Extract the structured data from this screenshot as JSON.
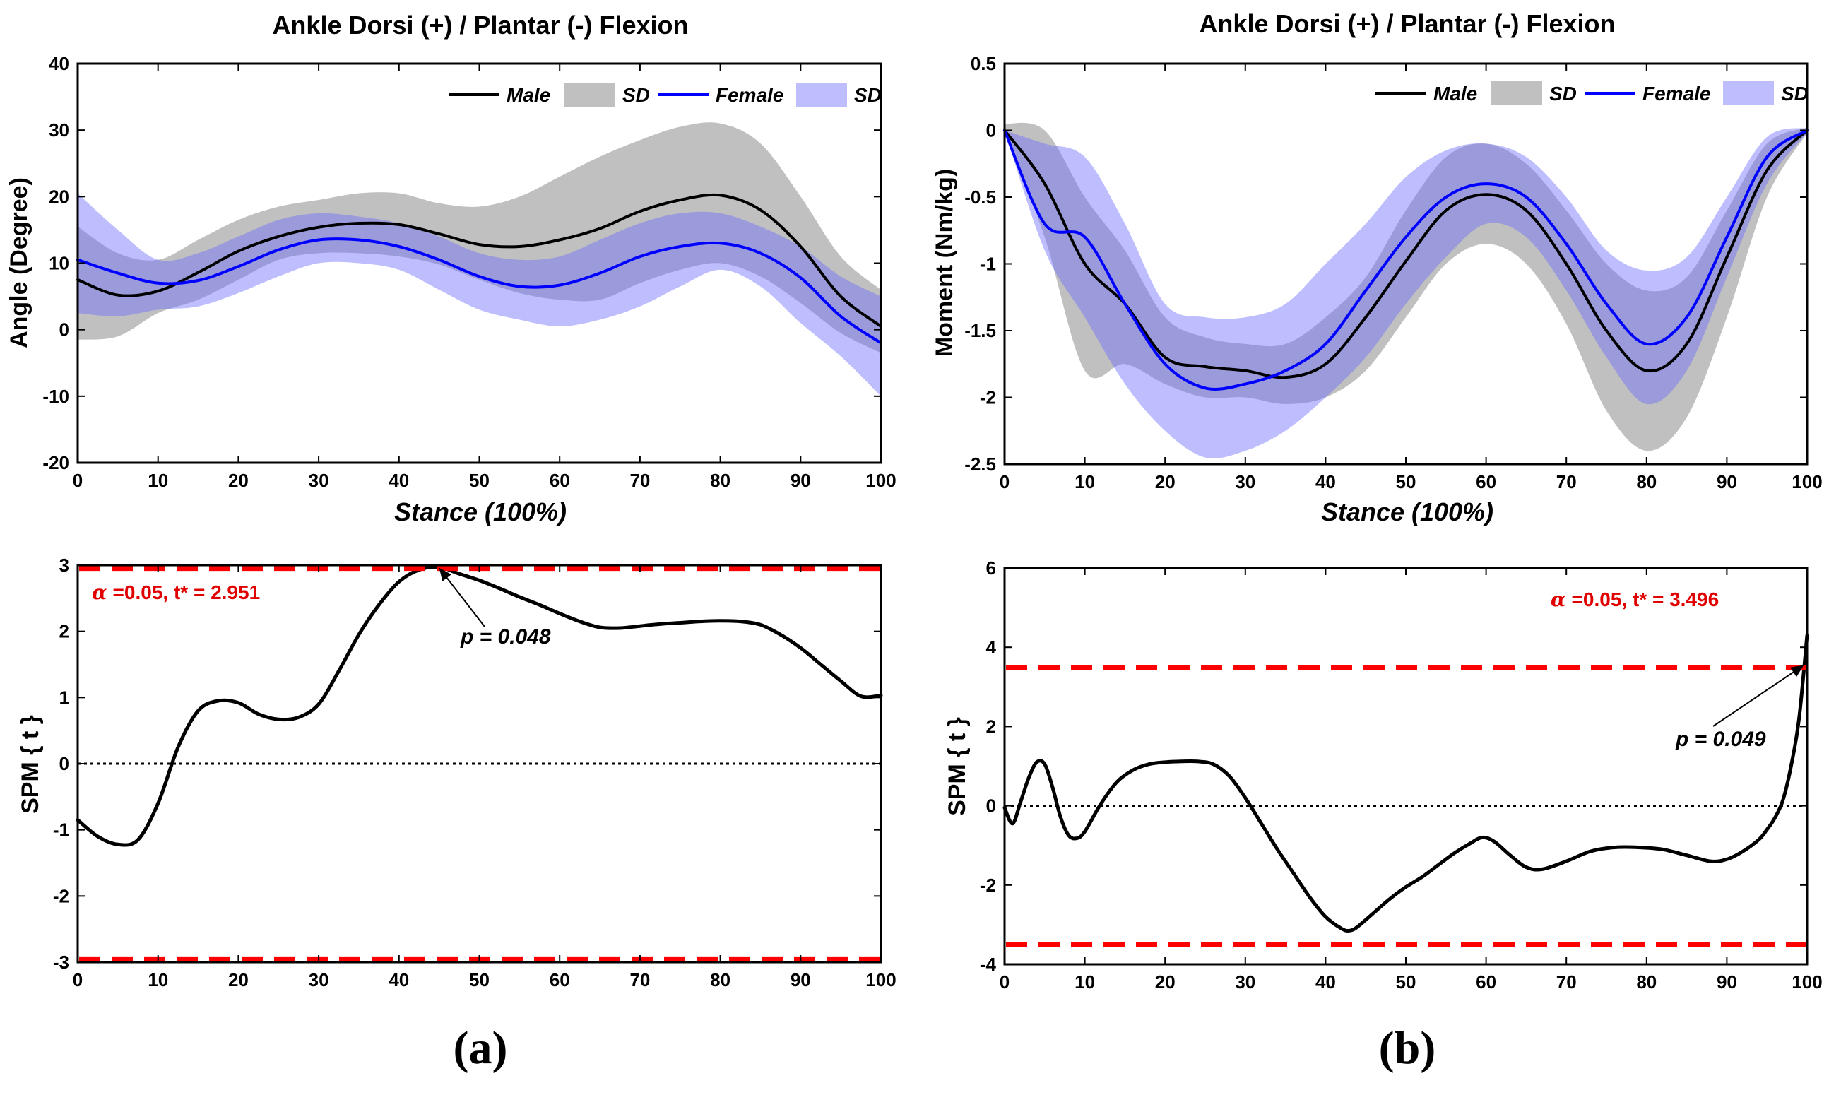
{
  "chart_data": [
    {
      "id": "a-top",
      "type": "line",
      "title": "Ankle Dorsi (+) / Plantar (-) Flexion",
      "xlabel": "Stance (100%)",
      "ylabel": "Angle (Degree)",
      "xlim": [
        0,
        100
      ],
      "ylim": [
        -20,
        40
      ],
      "xticks": [
        0,
        10,
        20,
        30,
        40,
        50,
        60,
        70,
        80,
        90,
        100
      ],
      "yticks": [
        -20,
        -10,
        0,
        10,
        20,
        30,
        40
      ],
      "legend": [
        "Male",
        "SD",
        "Female",
        "SD"
      ],
      "x": [
        0,
        5,
        10,
        15,
        20,
        25,
        30,
        35,
        40,
        45,
        50,
        55,
        60,
        65,
        70,
        75,
        80,
        85,
        90,
        95,
        100
      ],
      "series": [
        {
          "name": "Male",
          "color": "#000000",
          "values": [
            7.5,
            5.2,
            5.8,
            8.6,
            11.8,
            14.0,
            15.4,
            16.0,
            15.8,
            14.4,
            12.8,
            12.5,
            13.5,
            15.2,
            17.8,
            19.5,
            20.2,
            18.0,
            12.5,
            5.0,
            0.5
          ],
          "sd_upper": [
            15.5,
            11.5,
            10.5,
            13.5,
            16.5,
            18.5,
            19.5,
            20.5,
            20.5,
            19.0,
            18.5,
            20.0,
            23.0,
            26.0,
            28.5,
            30.5,
            31.0,
            28.0,
            20.0,
            11.0,
            6.0
          ],
          "sd_lower": [
            -1.5,
            -1.0,
            2.5,
            4.5,
            7.5,
            10.5,
            11.5,
            11.5,
            11.0,
            9.8,
            7.5,
            5.5,
            4.5,
            4.5,
            7.0,
            9.0,
            10.0,
            8.0,
            4.0,
            -0.5,
            -3.5
          ]
        },
        {
          "name": "Female",
          "color": "#0000ff",
          "values": [
            10.5,
            8.5,
            7.0,
            7.4,
            9.5,
            12.0,
            13.5,
            13.5,
            12.5,
            10.5,
            8.0,
            6.5,
            6.7,
            8.5,
            11.0,
            12.5,
            13.0,
            11.5,
            7.8,
            2.0,
            -2.0
          ],
          "sd_upper": [
            20.5,
            15.0,
            10.5,
            11.5,
            14.0,
            16.5,
            17.5,
            17.0,
            16.0,
            14.0,
            11.5,
            10.5,
            11.0,
            13.5,
            16.0,
            17.5,
            17.5,
            15.5,
            12.5,
            8.0,
            5.0
          ],
          "sd_lower": [
            2.5,
            2.0,
            3.0,
            3.5,
            5.5,
            8.0,
            10.0,
            10.0,
            9.0,
            6.0,
            3.0,
            1.5,
            0.5,
            1.5,
            3.5,
            6.5,
            9.0,
            6.5,
            1.0,
            -4.0,
            -10.0
          ]
        }
      ]
    },
    {
      "id": "b-top",
      "type": "line",
      "title": "Ankle Dorsi (+) / Plantar (-) Flexion",
      "xlabel": "Stance (100%)",
      "ylabel": "Moment (Nm/kg)",
      "xlim": [
        0,
        100
      ],
      "ylim": [
        -2.5,
        0.5
      ],
      "xticks": [
        0,
        10,
        20,
        30,
        40,
        50,
        60,
        70,
        80,
        90,
        100
      ],
      "yticks": [
        -2.5,
        -2,
        -1.5,
        -1,
        -0.5,
        0,
        0.5
      ],
      "ytick_labels": [
        "-2.5",
        "-2",
        "-1.5",
        "-1",
        "-0.5",
        "0",
        "0.5"
      ],
      "legend": [
        "Male",
        "SD",
        "Female",
        "SD"
      ],
      "x": [
        0,
        5,
        10,
        15,
        20,
        25,
        30,
        35,
        40,
        45,
        50,
        55,
        60,
        65,
        70,
        75,
        80,
        85,
        90,
        95,
        100
      ],
      "series": [
        {
          "name": "Male",
          "color": "#000000",
          "values": [
            0.0,
            -0.4,
            -1.0,
            -1.3,
            -1.7,
            -1.77,
            -1.8,
            -1.85,
            -1.75,
            -1.4,
            -0.98,
            -0.6,
            -0.48,
            -0.6,
            -1.0,
            -1.5,
            -1.8,
            -1.6,
            -0.95,
            -0.3,
            0.0
          ],
          "sd_upper": [
            0.05,
            0.0,
            -0.5,
            -0.9,
            -1.4,
            -1.55,
            -1.6,
            -1.6,
            -1.4,
            -1.1,
            -0.6,
            -0.2,
            -0.1,
            -0.25,
            -0.6,
            -1.0,
            -1.2,
            -1.1,
            -0.6,
            -0.1,
            0.02
          ],
          "sd_lower": [
            0.0,
            -0.8,
            -1.8,
            -1.75,
            -1.9,
            -2.0,
            -2.0,
            -2.05,
            -2.0,
            -1.8,
            -1.4,
            -1.0,
            -0.85,
            -1.0,
            -1.45,
            -2.1,
            -2.4,
            -2.15,
            -1.4,
            -0.5,
            -0.02
          ]
        },
        {
          "name": "Female",
          "color": "#0000ff",
          "values": [
            0.0,
            -0.7,
            -0.8,
            -1.3,
            -1.75,
            -1.93,
            -1.9,
            -1.8,
            -1.6,
            -1.2,
            -0.8,
            -0.5,
            -0.4,
            -0.5,
            -0.85,
            -1.3,
            -1.6,
            -1.4,
            -0.8,
            -0.2,
            0.0
          ],
          "sd_upper": [
            0.0,
            -0.1,
            -0.2,
            -0.7,
            -1.3,
            -1.4,
            -1.4,
            -1.3,
            -1.0,
            -0.7,
            -0.35,
            -0.15,
            -0.1,
            -0.2,
            -0.5,
            -0.9,
            -1.05,
            -0.95,
            -0.5,
            -0.05,
            0.02
          ],
          "sd_lower": [
            0.0,
            -0.9,
            -1.4,
            -1.9,
            -2.25,
            -2.45,
            -2.4,
            -2.25,
            -2.0,
            -1.7,
            -1.3,
            -0.95,
            -0.7,
            -0.8,
            -1.2,
            -1.7,
            -2.05,
            -1.8,
            -1.1,
            -0.4,
            -0.02
          ]
        }
      ]
    },
    {
      "id": "a-bottom",
      "type": "line",
      "xlabel": "",
      "ylabel": "SPM { t }",
      "xlim": [
        0,
        100
      ],
      "ylim": [
        -3,
        3
      ],
      "xticks": [
        0,
        10,
        20,
        30,
        40,
        50,
        60,
        70,
        80,
        90,
        100
      ],
      "yticks": [
        -3,
        -2,
        -1,
        0,
        1,
        2,
        3
      ],
      "threshold": 2.951,
      "annotation_stats": "=0.05,     t* = 2.951",
      "annotation_alpha": "α",
      "annotation_p": "p = 0.048",
      "p_point": [
        45,
        2.96
      ],
      "x": [
        0,
        2.5,
        5,
        7.5,
        10,
        12.5,
        15,
        17.5,
        20,
        22.5,
        25,
        27.5,
        30,
        32.5,
        35,
        37.5,
        40,
        42.5,
        45,
        47.5,
        50,
        52.5,
        55,
        57.5,
        60,
        62.5,
        65,
        67.5,
        70,
        72.5,
        75,
        77.5,
        80,
        82.5,
        85,
        87.5,
        90,
        92.5,
        95,
        97.5,
        100
      ],
      "series": [
        {
          "name": "SPM{t}",
          "color": "#000000",
          "values": [
            -0.85,
            -1.1,
            -1.22,
            -1.15,
            -0.6,
            0.25,
            0.8,
            0.95,
            0.92,
            0.75,
            0.67,
            0.7,
            0.9,
            1.4,
            1.95,
            2.4,
            2.75,
            2.93,
            2.97,
            2.87,
            2.77,
            2.65,
            2.52,
            2.4,
            2.27,
            2.15,
            2.06,
            2.05,
            2.08,
            2.11,
            2.13,
            2.15,
            2.16,
            2.15,
            2.1,
            1.95,
            1.75,
            1.5,
            1.25,
            1.02,
            1.03
          ]
        }
      ]
    },
    {
      "id": "b-bottom",
      "type": "line",
      "xlabel": "",
      "ylabel": "SPM { t }",
      "xlim": [
        0,
        100
      ],
      "ylim": [
        -4,
        6
      ],
      "xticks": [
        0,
        10,
        20,
        30,
        40,
        50,
        60,
        70,
        80,
        90,
        100
      ],
      "yticks": [
        -4,
        -2,
        0,
        2,
        4,
        6
      ],
      "threshold": 3.496,
      "annotation_stats": "=0.05,     t* = 3.496",
      "annotation_alpha": "α",
      "annotation_p": "p = 0.049",
      "p_point": [
        99.6,
        3.55
      ],
      "x": [
        0,
        1,
        2,
        3,
        4,
        5,
        6,
        7,
        8,
        9,
        10,
        12,
        14,
        16,
        18,
        20,
        22,
        24,
        26,
        28,
        30,
        32,
        34,
        36,
        38,
        40,
        42,
        43,
        44,
        46,
        48,
        50,
        52,
        54,
        56,
        58,
        59.5,
        61,
        63,
        65,
        67,
        70,
        73,
        76,
        79,
        82,
        85,
        88,
        90,
        92,
        94,
        95,
        96,
        97,
        98,
        99,
        100
      ],
      "series": [
        {
          "name": "SPM{t}",
          "color": "#000000",
          "values": [
            -0.05,
            -0.45,
            0.1,
            0.7,
            1.1,
            1.05,
            0.45,
            -0.3,
            -0.75,
            -0.82,
            -0.65,
            0.05,
            0.6,
            0.9,
            1.05,
            1.1,
            1.12,
            1.12,
            1.05,
            0.75,
            0.2,
            -0.45,
            -1.1,
            -1.7,
            -2.3,
            -2.8,
            -3.1,
            -3.15,
            -3.05,
            -2.7,
            -2.35,
            -2.05,
            -1.8,
            -1.5,
            -1.2,
            -0.95,
            -0.8,
            -0.9,
            -1.25,
            -1.55,
            -1.6,
            -1.4,
            -1.15,
            -1.05,
            -1.05,
            -1.1,
            -1.25,
            -1.4,
            -1.35,
            -1.15,
            -0.85,
            -0.6,
            -0.3,
            0.15,
            1.0,
            2.2,
            4.3
          ]
        }
      ]
    }
  ],
  "panel_labels": [
    "(a)",
    "(b)"
  ]
}
